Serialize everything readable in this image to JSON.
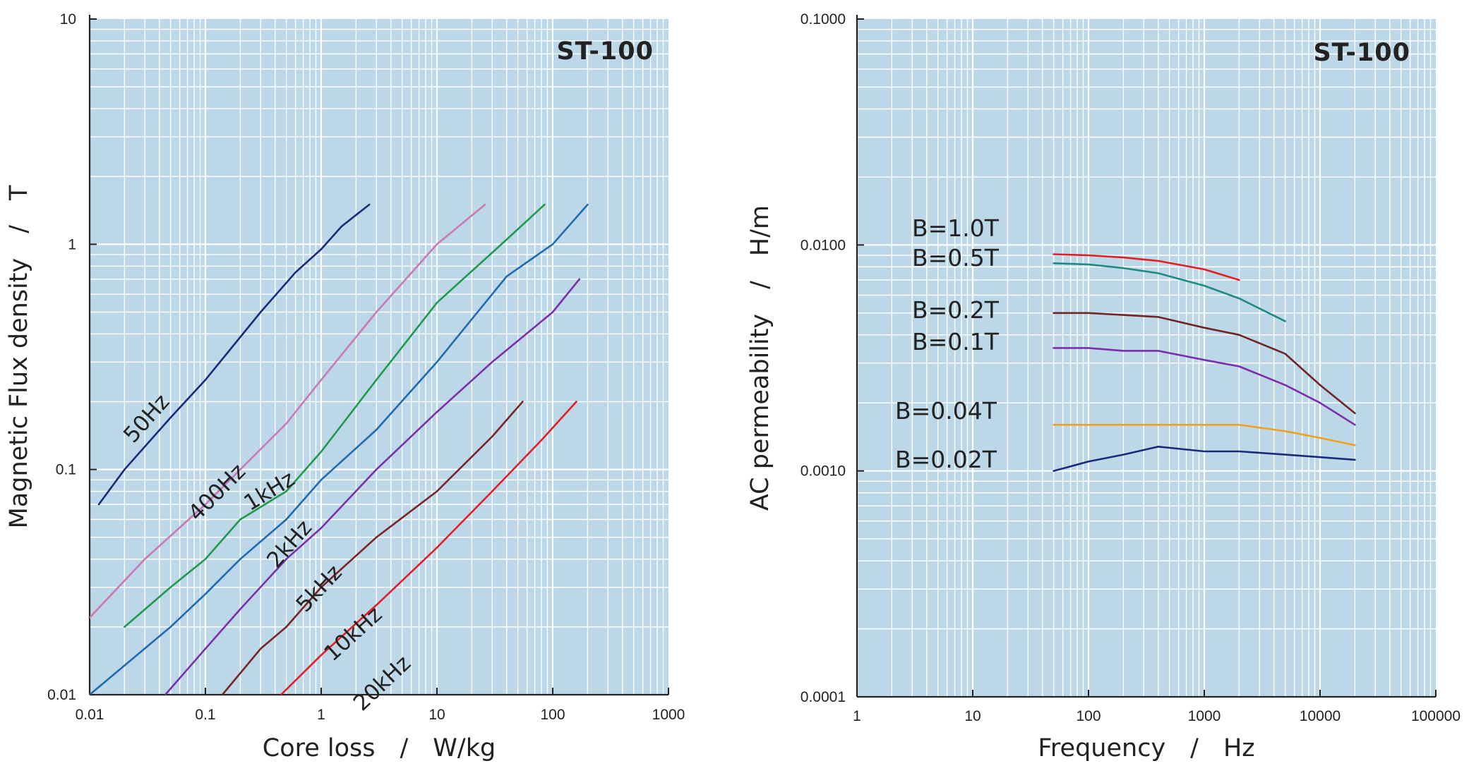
{
  "chart_data": [
    {
      "type": "line",
      "title": "ST-100",
      "xlabel": "Core loss　/　W/kg",
      "ylabel": "Magnetic Flux density　/　T",
      "xscale": "log",
      "yscale": "log",
      "xlim": [
        0.01,
        1000
      ],
      "ylim": [
        0.01,
        10
      ],
      "x_ticks": [
        "0.01",
        "0.1",
        "1",
        "10",
        "100",
        "1000"
      ],
      "y_ticks": [
        "0.01",
        "0.1",
        "1",
        "10"
      ],
      "grid": true,
      "background": "#bcd7e8",
      "series": [
        {
          "name": "50Hz",
          "color": "#1a2a7a",
          "points": [
            [
              0.012,
              0.07
            ],
            [
              0.02,
              0.1
            ],
            [
              0.05,
              0.17
            ],
            [
              0.1,
              0.25
            ],
            [
              0.3,
              0.5
            ],
            [
              0.6,
              0.75
            ],
            [
              1,
              0.95
            ],
            [
              1.5,
              1.2
            ],
            [
              2.6,
              1.5
            ]
          ]
        },
        {
          "name": "400Hz",
          "color": "#c978b8",
          "points": [
            [
              0.01,
              0.022
            ],
            [
              0.03,
              0.04
            ],
            [
              0.1,
              0.07
            ],
            [
              0.2,
              0.1
            ],
            [
              0.5,
              0.16
            ],
            [
              1,
              0.25
            ],
            [
              3,
              0.5
            ],
            [
              10,
              1.0
            ],
            [
              26,
              1.5
            ]
          ]
        },
        {
          "name": "1kHz",
          "color": "#1f9a4a",
          "points": [
            [
              0.02,
              0.02
            ],
            [
              0.05,
              0.03
            ],
            [
              0.1,
              0.04
            ],
            [
              0.2,
              0.06
            ],
            [
              0.5,
              0.08
            ],
            [
              1,
              0.12
            ],
            [
              3,
              0.25
            ],
            [
              10,
              0.55
            ],
            [
              40,
              1.05
            ],
            [
              85,
              1.5
            ]
          ]
        },
        {
          "name": "2kHz",
          "color": "#1f6bb0",
          "points": [
            [
              0.01,
              0.01
            ],
            [
              0.05,
              0.02
            ],
            [
              0.1,
              0.028
            ],
            [
              0.2,
              0.04
            ],
            [
              0.5,
              0.06
            ],
            [
              1,
              0.09
            ],
            [
              3,
              0.15
            ],
            [
              10,
              0.3
            ],
            [
              40,
              0.72
            ],
            [
              100,
              1.0
            ],
            [
              200,
              1.5
            ]
          ]
        },
        {
          "name": "5kHz",
          "color": "#7a2ea8",
          "points": [
            [
              0.045,
              0.01
            ],
            [
              0.1,
              0.016
            ],
            [
              0.2,
              0.024
            ],
            [
              0.5,
              0.04
            ],
            [
              1,
              0.055
            ],
            [
              3,
              0.1
            ],
            [
              10,
              0.18
            ],
            [
              30,
              0.3
            ],
            [
              100,
              0.5
            ],
            [
              170,
              0.7
            ]
          ]
        },
        {
          "name": "10kHz",
          "color": "#7a2525",
          "points": [
            [
              0.14,
              0.01
            ],
            [
              0.3,
              0.016
            ],
            [
              0.5,
              0.02
            ],
            [
              1,
              0.03
            ],
            [
              3,
              0.05
            ],
            [
              10,
              0.08
            ],
            [
              30,
              0.14
            ],
            [
              55,
              0.2
            ]
          ]
        },
        {
          "name": "20kHz",
          "color": "#e21d24",
          "points": [
            [
              0.45,
              0.01
            ],
            [
              1,
              0.015
            ],
            [
              3,
              0.025
            ],
            [
              10,
              0.045
            ],
            [
              30,
              0.08
            ],
            [
              80,
              0.135
            ],
            [
              160,
              0.2
            ]
          ]
        }
      ],
      "curve_labels": [
        {
          "text": "50Hz",
          "series": "50Hz"
        },
        {
          "text": "400Hz",
          "series": "400Hz"
        },
        {
          "text": "1kHz",
          "series": "1kHz"
        },
        {
          "text": "2kHz",
          "series": "2kHz"
        },
        {
          "text": "5kHz",
          "series": "5kHz"
        },
        {
          "text": "10kHz",
          "series": "10kHz"
        },
        {
          "text": "20kHz",
          "series": "20kHz"
        }
      ]
    },
    {
      "type": "line",
      "title": "ST-100",
      "xlabel": "Frequency　/　Hz",
      "ylabel": "AC permeability　/　H/m",
      "xscale": "log",
      "yscale": "log",
      "xlim": [
        1,
        100000
      ],
      "ylim": [
        0.0001,
        0.1
      ],
      "x_ticks": [
        "1",
        "10",
        "100",
        "1000",
        "10000",
        "100000"
      ],
      "y_ticks": [
        "0.0001",
        "0.0010",
        "0.0100",
        "0.1000"
      ],
      "grid": true,
      "background": "#bcd7e8",
      "series": [
        {
          "name": "B=1.0T",
          "color": "#e21d24",
          "points": [
            [
              50,
              0.0091
            ],
            [
              100,
              0.009
            ],
            [
              200,
              0.0088
            ],
            [
              400,
              0.0085
            ],
            [
              1000,
              0.0078
            ],
            [
              2000,
              0.007
            ]
          ]
        },
        {
          "name": "B=0.5T",
          "color": "#1f8a84",
          "points": [
            [
              50,
              0.0083
            ],
            [
              100,
              0.0082
            ],
            [
              200,
              0.0079
            ],
            [
              400,
              0.0075
            ],
            [
              1000,
              0.0066
            ],
            [
              2000,
              0.0058
            ],
            [
              5000,
              0.0046
            ]
          ]
        },
        {
          "name": "B=0.2T",
          "color": "#6e2525",
          "points": [
            [
              50,
              0.005
            ],
            [
              100,
              0.005
            ],
            [
              200,
              0.0049
            ],
            [
              400,
              0.0048
            ],
            [
              1000,
              0.0043
            ],
            [
              2000,
              0.004
            ],
            [
              5000,
              0.0033
            ],
            [
              10000,
              0.0024
            ],
            [
              20000,
              0.0018
            ]
          ]
        },
        {
          "name": "B=0.1T",
          "color": "#7a2ea8",
          "points": [
            [
              50,
              0.0035
            ],
            [
              100,
              0.0035
            ],
            [
              200,
              0.0034
            ],
            [
              400,
              0.0034
            ],
            [
              1000,
              0.0031
            ],
            [
              2000,
              0.0029
            ],
            [
              5000,
              0.0024
            ],
            [
              10000,
              0.002
            ],
            [
              20000,
              0.0016
            ]
          ]
        },
        {
          "name": "B=0.04T",
          "color": "#f0a020",
          "points": [
            [
              50,
              0.0016
            ],
            [
              100,
              0.0016
            ],
            [
              200,
              0.0016
            ],
            [
              400,
              0.0016
            ],
            [
              1000,
              0.0016
            ],
            [
              2000,
              0.0016
            ],
            [
              5000,
              0.0015
            ],
            [
              10000,
              0.0014
            ],
            [
              20000,
              0.0013
            ]
          ]
        },
        {
          "name": "B=0.02T",
          "color": "#1a2a7a",
          "points": [
            [
              50,
              0.001
            ],
            [
              100,
              0.0011
            ],
            [
              200,
              0.00118
            ],
            [
              400,
              0.00128
            ],
            [
              1000,
              0.00122
            ],
            [
              2000,
              0.00122
            ],
            [
              5000,
              0.00118
            ],
            [
              10000,
              0.00115
            ],
            [
              20000,
              0.00112
            ]
          ]
        }
      ]
    }
  ]
}
